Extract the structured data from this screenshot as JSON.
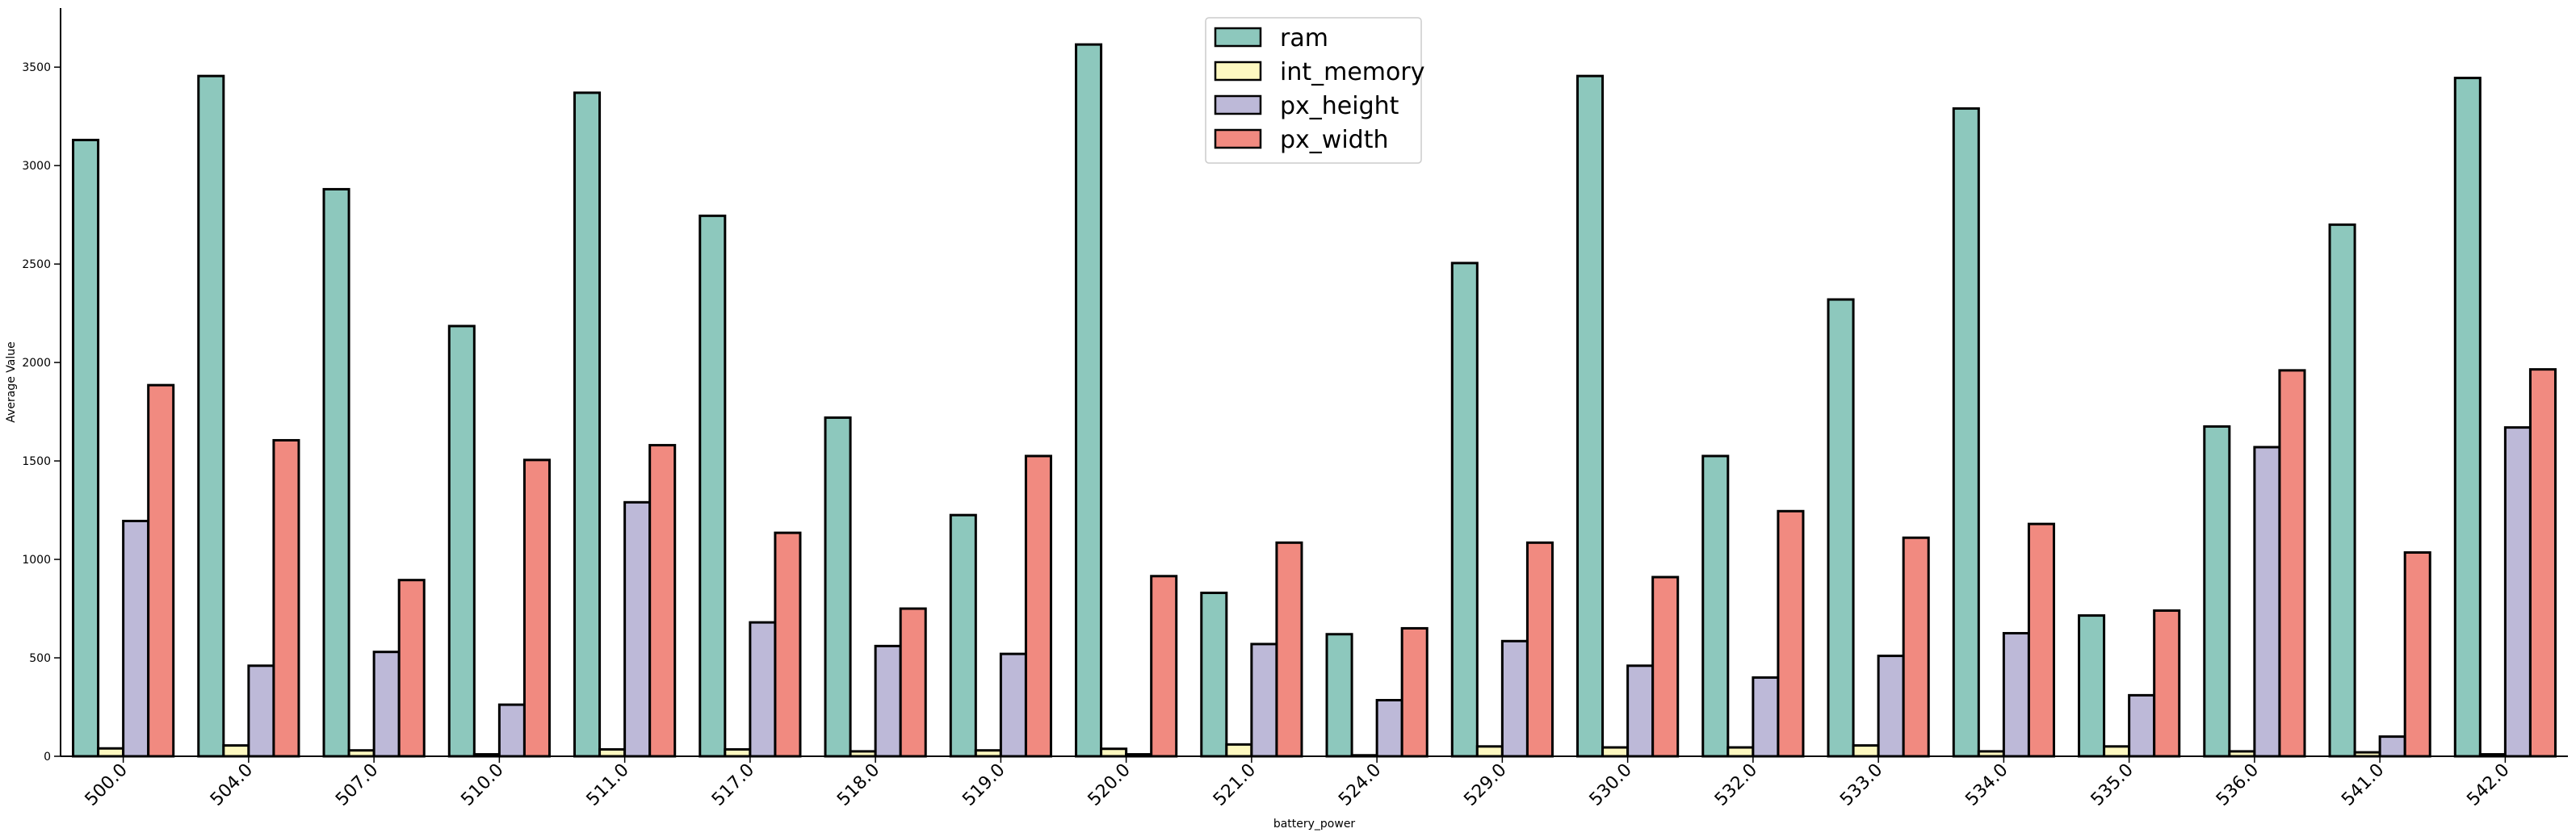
{
  "chart_data": {
    "type": "bar",
    "title": "",
    "xlabel": "battery_power",
    "ylabel": "Average Value",
    "ylim": [
      0,
      3800
    ],
    "yticks": [
      0,
      500,
      1000,
      1500,
      2000,
      2500,
      3000,
      3500
    ],
    "grid": false,
    "legend_position": "top-center",
    "categories": [
      "500.0",
      "504.0",
      "507.0",
      "510.0",
      "511.0",
      "517.0",
      "518.0",
      "519.0",
      "520.0",
      "521.0",
      "524.0",
      "529.0",
      "530.0",
      "532.0",
      "533.0",
      "534.0",
      "535.0",
      "536.0",
      "541.0",
      "542.0"
    ],
    "series": [
      {
        "name": "ram",
        "color": "#8dc8bd",
        "values": [
          3130,
          3455,
          2880,
          2185,
          3370,
          2745,
          1720,
          1225,
          3615,
          830,
          620,
          2505,
          3455,
          1525,
          2320,
          3290,
          715,
          1675,
          2700,
          3445
        ]
      },
      {
        "name": "int_memory",
        "color": "#fdf8c0",
        "values": [
          40,
          55,
          30,
          10,
          35,
          35,
          25,
          30,
          38,
          60,
          5,
          50,
          45,
          45,
          55,
          25,
          50,
          25,
          20,
          10
        ]
      },
      {
        "name": "px_height",
        "color": "#bdb9d8",
        "values": [
          1195,
          460,
          530,
          262,
          1290,
          680,
          560,
          520,
          10,
          570,
          285,
          585,
          460,
          400,
          510,
          625,
          310,
          1570,
          100,
          1670
        ]
      },
      {
        "name": "px_width",
        "color": "#f18a80",
        "values": [
          1885,
          1605,
          895,
          1505,
          1580,
          1135,
          750,
          1525,
          915,
          1085,
          650,
          1085,
          910,
          1245,
          1110,
          1180,
          740,
          1960,
          1035,
          1965
        ]
      }
    ]
  }
}
